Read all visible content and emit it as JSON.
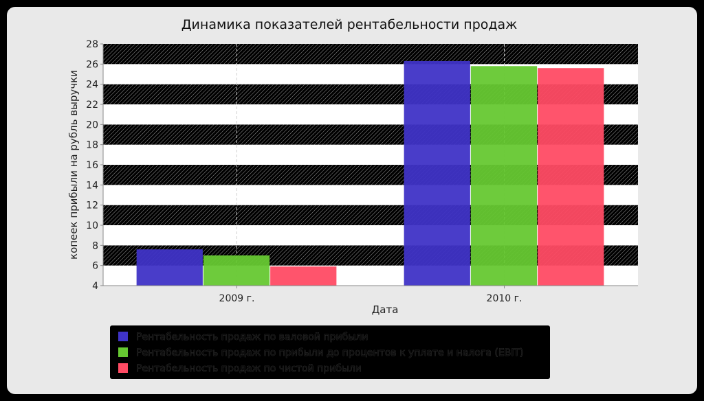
{
  "chart_data": {
    "type": "bar",
    "title": "Динамика показателей рентабельности продаж",
    "xlabel": "Дата",
    "ylabel": "копеек прибыли на рубль выручки",
    "categories": [
      "2009 г.",
      "2010 г."
    ],
    "ylim": [
      4,
      28
    ],
    "yticks": [
      4,
      6,
      8,
      10,
      12,
      14,
      16,
      18,
      20,
      22,
      24,
      26,
      28
    ],
    "grid": true,
    "legend_position": "bottom",
    "series": [
      {
        "name": "Рентабельность продаж по валовой прибыли",
        "color": "#3f33c6",
        "values": [
          7.6,
          26.3
        ]
      },
      {
        "name": "Рентабельность продаж по прибыли до процентов к уплате и налога (EBIT)",
        "color": "#66c832",
        "values": [
          7.0,
          25.8
        ]
      },
      {
        "name": "Рентабельность продаж по чистой прибыли",
        "color": "#ff4b64",
        "values": [
          5.9,
          25.6
        ]
      }
    ]
  }
}
